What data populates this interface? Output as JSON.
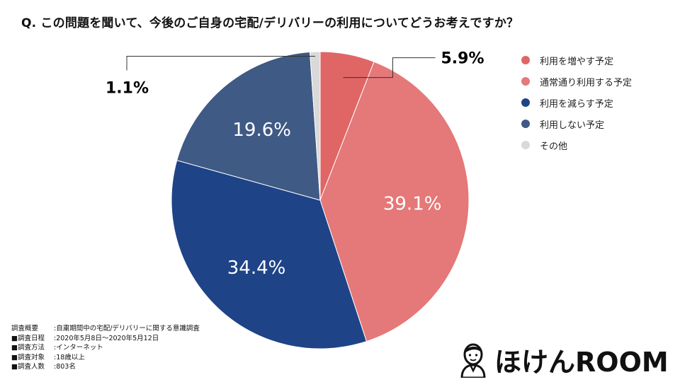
{
  "question": "Q.  この問題を聞いて、今後のご自身の宅配/デリバリーの利用についてどうお考えですか？",
  "chart_data": {
    "type": "pie",
    "title": "Q.  この問題を聞いて、今後のご自身の宅配/デリバリーの利用についてどうお考えですか？",
    "legend_position": "right",
    "slices": [
      {
        "label": "利用を増やす予定",
        "value": 5.9,
        "value_label": "5.9%",
        "color": "#e06666"
      },
      {
        "label": "通常通り利用する予定",
        "value": 39.1,
        "value_label": "39.1%",
        "color": "#e57878"
      },
      {
        "label": "利用を減らす予定",
        "value": 34.4,
        "value_label": "34.4%",
        "color": "#1e4387"
      },
      {
        "label": "利用しない予定",
        "value": 19.6,
        "value_label": "19.6%",
        "color": "#3f5a84"
      },
      {
        "label": "その他",
        "value": 1.1,
        "value_label": "1.1%",
        "color": "#d9d9d9"
      }
    ]
  },
  "notes": [
    {
      "label": "調査概要",
      "value": ":自粛期間中の宅配/デリバリーに関する意識調査"
    },
    {
      "label": "■調査日程",
      "value": ":2020年5月8日～2020年5月12日"
    },
    {
      "label": "■調査方法",
      "value": ":インターネット"
    },
    {
      "label": "■調査対象",
      "value": ":18歳以上"
    },
    {
      "label": "■調査人数",
      "value": ":803名"
    }
  ],
  "logo": {
    "text": "ほけんROOM",
    "brand_color": "#e53935"
  }
}
